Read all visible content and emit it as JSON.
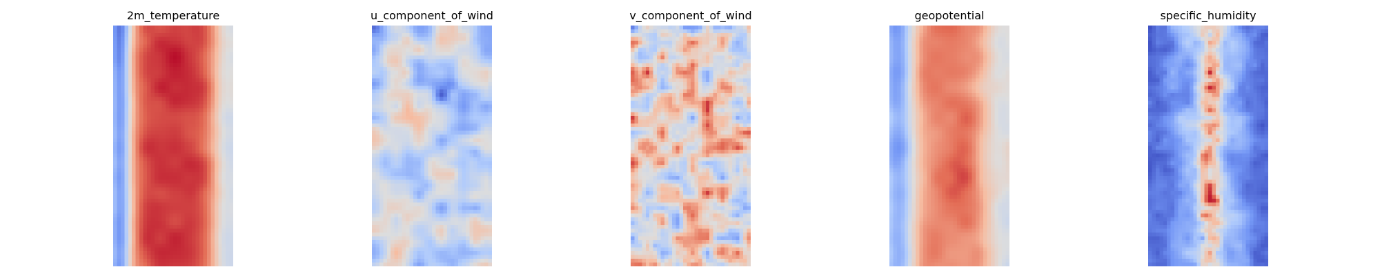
{
  "figure": {
    "colormap": "coolwarm",
    "colormap_stops": [
      "#3b4cc0",
      "#7396f5",
      "#b0cbfc",
      "#dddddd",
      "#f6bda2",
      "#e36c55",
      "#b40426"
    ]
  },
  "chart_data": [
    {
      "type": "heatmap",
      "title": "2m_temperature",
      "axes_visible": false,
      "grid_cols": 32,
      "grid_rows": 64,
      "colorbar": false,
      "description_of_field": "cold (blue) narrow band along left edge, broad warm (red) band through center, fading to light/neutral on right edge"
    },
    {
      "type": "heatmap",
      "title": "u_component_of_wind",
      "axes_visible": false,
      "grid_cols": 32,
      "grid_rows": 64,
      "colorbar": false
    },
    {
      "type": "heatmap",
      "title": "v_component_of_wind",
      "axes_visible": false,
      "grid_cols": 32,
      "grid_rows": 64,
      "colorbar": false
    },
    {
      "type": "heatmap",
      "title": "geopotential",
      "axes_visible": false,
      "grid_cols": 32,
      "grid_rows": 64,
      "colorbar": false
    },
    {
      "type": "heatmap",
      "title": "specific_humidity",
      "axes_visible": false,
      "grid_cols": 32,
      "grid_rows": 64,
      "colorbar": false
    }
  ]
}
